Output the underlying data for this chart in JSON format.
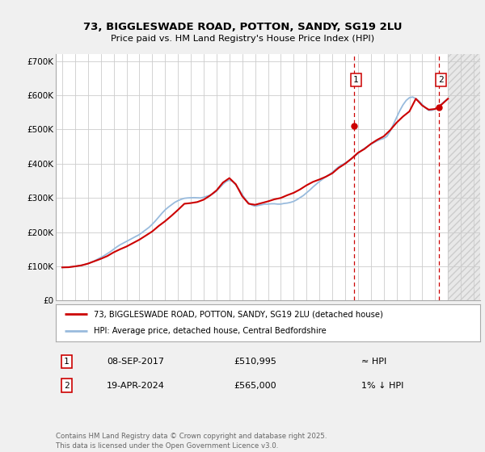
{
  "title": "73, BIGGLESWADE ROAD, POTTON, SANDY, SG19 2LU",
  "subtitle": "Price paid vs. HM Land Registry's House Price Index (HPI)",
  "line_color": "#cc0000",
  "hpi_color": "#99bbdd",
  "bg_color": "#f0f0f0",
  "plot_bg": "#ffffff",
  "vline_color": "#cc0000",
  "xlim": [
    1994.5,
    2027.5
  ],
  "ylim": [
    0,
    720000
  ],
  "yticks": [
    0,
    100000,
    200000,
    300000,
    400000,
    500000,
    600000,
    700000
  ],
  "ytick_labels": [
    "£0",
    "£100K",
    "£200K",
    "£300K",
    "£400K",
    "£500K",
    "£600K",
    "£700K"
  ],
  "xticks": [
    1995,
    1996,
    1997,
    1998,
    1999,
    2000,
    2001,
    2002,
    2003,
    2004,
    2005,
    2006,
    2007,
    2008,
    2009,
    2010,
    2011,
    2012,
    2013,
    2014,
    2015,
    2016,
    2017,
    2018,
    2019,
    2020,
    2021,
    2022,
    2023,
    2024,
    2025,
    2026,
    2027
  ],
  "sale1_x": 2017.69,
  "sale1_y": 510995,
  "sale2_x": 2024.3,
  "sale2_y": 565000,
  "legend_line1": "73, BIGGLESWADE ROAD, POTTON, SANDY, SG19 2LU (detached house)",
  "legend_line2": "HPI: Average price, detached house, Central Bedfordshire",
  "annotation1_date": "08-SEP-2017",
  "annotation1_price": "£510,995",
  "annotation1_hpi": "≈ HPI",
  "annotation2_date": "19-APR-2024",
  "annotation2_price": "£565,000",
  "annotation2_hpi": "1% ↓ HPI",
  "footer": "Contains HM Land Registry data © Crown copyright and database right 2025.\nThis data is licensed under the Open Government Licence v3.0.",
  "shade_start": 2025.0,
  "shade_end": 2027.5,
  "hpi_line_data_x": [
    1995.0,
    1995.25,
    1995.5,
    1995.75,
    1996.0,
    1996.25,
    1996.5,
    1996.75,
    1997.0,
    1997.25,
    1997.5,
    1997.75,
    1998.0,
    1998.25,
    1998.5,
    1998.75,
    1999.0,
    1999.25,
    1999.5,
    1999.75,
    2000.0,
    2000.25,
    2000.5,
    2000.75,
    2001.0,
    2001.25,
    2001.5,
    2001.75,
    2002.0,
    2002.25,
    2002.5,
    2002.75,
    2003.0,
    2003.25,
    2003.5,
    2003.75,
    2004.0,
    2004.25,
    2004.5,
    2004.75,
    2005.0,
    2005.25,
    2005.5,
    2005.75,
    2006.0,
    2006.25,
    2006.5,
    2006.75,
    2007.0,
    2007.25,
    2007.5,
    2007.75,
    2008.0,
    2008.25,
    2008.5,
    2008.75,
    2009.0,
    2009.25,
    2009.5,
    2009.75,
    2010.0,
    2010.25,
    2010.5,
    2010.75,
    2011.0,
    2011.25,
    2011.5,
    2011.75,
    2012.0,
    2012.25,
    2012.5,
    2012.75,
    2013.0,
    2013.25,
    2013.5,
    2013.75,
    2014.0,
    2014.25,
    2014.5,
    2014.75,
    2015.0,
    2015.25,
    2015.5,
    2015.75,
    2016.0,
    2016.25,
    2016.5,
    2016.75,
    2017.0,
    2017.25,
    2017.5,
    2017.75,
    2018.0,
    2018.25,
    2018.5,
    2018.75,
    2019.0,
    2019.25,
    2019.5,
    2019.75,
    2020.0,
    2020.25,
    2020.5,
    2020.75,
    2021.0,
    2021.25,
    2021.5,
    2021.75,
    2022.0,
    2022.25,
    2022.5,
    2022.75,
    2023.0,
    2023.25,
    2023.5,
    2023.75,
    2024.0,
    2024.25,
    2024.5,
    2024.75,
    2025.0
  ],
  "hpi_line_data_y": [
    97000,
    97500,
    98000,
    99000,
    100000,
    101500,
    103000,
    105000,
    108000,
    112000,
    116000,
    121000,
    126000,
    131000,
    137000,
    143000,
    150000,
    157000,
    163000,
    168000,
    173000,
    178000,
    183000,
    188000,
    193000,
    200000,
    207000,
    214000,
    223000,
    233000,
    244000,
    255000,
    265000,
    273000,
    280000,
    287000,
    292000,
    296000,
    299000,
    300000,
    300500,
    300800,
    300500,
    300000,
    302000,
    305000,
    308000,
    313000,
    320000,
    330000,
    340000,
    348000,
    352000,
    348000,
    338000,
    325000,
    310000,
    296000,
    285000,
    279000,
    276000,
    278000,
    280000,
    282000,
    282000,
    283000,
    283000,
    282000,
    282000,
    284000,
    285000,
    287000,
    290000,
    295000,
    301000,
    307000,
    315000,
    323000,
    332000,
    340000,
    348000,
    355000,
    362000,
    368000,
    375000,
    383000,
    391000,
    397000,
    402000,
    408000,
    415000,
    422000,
    430000,
    438000,
    445000,
    451000,
    457000,
    462000,
    467000,
    471000,
    474000,
    480000,
    495000,
    515000,
    535000,
    555000,
    572000,
    585000,
    593000,
    595000,
    590000,
    583000,
    573000,
    563000,
    556000,
    556000,
    560000,
    566000,
    575000,
    583000,
    590000
  ],
  "price_line_data_x": [
    1995.0,
    1995.5,
    1996.0,
    1996.5,
    1997.0,
    1997.5,
    1998.0,
    1998.5,
    1999.0,
    1999.5,
    2000.0,
    2000.5,
    2001.0,
    2001.5,
    2002.0,
    2002.5,
    2003.0,
    2003.5,
    2004.0,
    2004.5,
    2005.0,
    2005.5,
    2006.0,
    2006.5,
    2007.0,
    2007.5,
    2008.0,
    2008.5,
    2009.0,
    2009.5,
    2010.0,
    2010.5,
    2011.0,
    2011.5,
    2012.0,
    2012.5,
    2013.0,
    2013.5,
    2014.0,
    2014.5,
    2015.0,
    2015.5,
    2016.0,
    2016.5,
    2017.0,
    2017.5,
    2018.0,
    2018.5,
    2019.0,
    2019.5,
    2020.0,
    2020.5,
    2021.0,
    2021.5,
    2022.0,
    2022.5,
    2023.0,
    2023.5,
    2024.0,
    2024.5,
    2025.0
  ],
  "price_line_data_y": [
    97000,
    97500,
    100000,
    103000,
    108000,
    115000,
    122000,
    130000,
    141000,
    150000,
    158000,
    168000,
    178000,
    190000,
    202000,
    218000,
    232000,
    248000,
    265000,
    283000,
    285000,
    288000,
    295000,
    307000,
    322000,
    345000,
    358000,
    340000,
    305000,
    283000,
    280000,
    285000,
    290000,
    296000,
    300000,
    308000,
    315000,
    325000,
    337000,
    347000,
    354000,
    362000,
    372000,
    388000,
    400000,
    415000,
    432000,
    443000,
    458000,
    470000,
    480000,
    498000,
    520000,
    538000,
    553000,
    590000,
    570000,
    558000,
    560000,
    573000,
    590000
  ]
}
